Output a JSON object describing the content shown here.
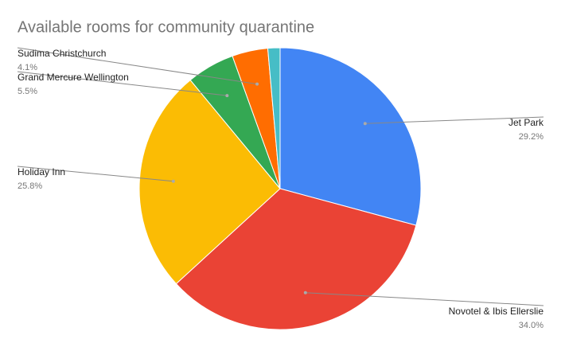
{
  "chart_data": {
    "type": "pie",
    "title": "Available rooms for community quarantine",
    "categories": [
      "Jet Park",
      "Novotel & Ibis Ellerslie",
      "Holiday Inn",
      "Grand Mercure Wellington",
      "Sudima Christchurch",
      null
    ],
    "values": [
      29.2,
      34.0,
      25.8,
      5.5,
      4.1,
      1.4
    ],
    "value_labels": [
      "29.2%",
      "34.0%",
      "25.8%",
      "5.5%",
      "4.1%",
      null
    ],
    "colors": [
      "#4285f4",
      "#ea4335",
      "#fbbc04",
      "#34a853",
      "#ff6d01",
      "#46bdc6"
    ]
  }
}
